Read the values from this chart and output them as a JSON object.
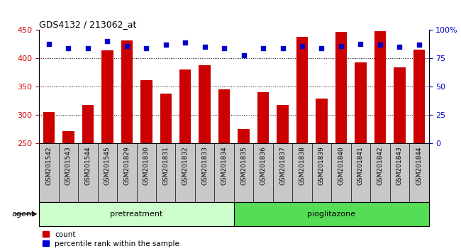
{
  "title": "GDS4132 / 213062_at",
  "categories": [
    "GSM201542",
    "GSM201543",
    "GSM201544",
    "GSM201545",
    "GSM201829",
    "GSM201830",
    "GSM201831",
    "GSM201832",
    "GSM201833",
    "GSM201834",
    "GSM201835",
    "GSM201836",
    "GSM201837",
    "GSM201838",
    "GSM201839",
    "GSM201840",
    "GSM201841",
    "GSM201842",
    "GSM201843",
    "GSM201844"
  ],
  "counts": [
    305,
    271,
    317,
    414,
    432,
    362,
    338,
    380,
    388,
    345,
    275,
    340,
    317,
    438,
    329,
    447,
    393,
    448,
    384,
    416
  ],
  "percentile_ranks": [
    88,
    84,
    84,
    90,
    86,
    84,
    87,
    89,
    85,
    84,
    78,
    84,
    84,
    86,
    84,
    86,
    88,
    87,
    85,
    87
  ],
  "bar_color": "#cc0000",
  "dot_color": "#0000cc",
  "ylim_left": [
    250,
    450
  ],
  "ylim_right": [
    0,
    100
  ],
  "yticks_left": [
    250,
    300,
    350,
    400,
    450
  ],
  "yticks_right": [
    0,
    25,
    50,
    75,
    100
  ],
  "yticklabels_right": [
    "0",
    "25",
    "50",
    "75",
    "100%"
  ],
  "grid_ticks": [
    300,
    350,
    400
  ],
  "plot_bg_color": "#ffffff",
  "tick_area_bg": "#c8c8c8",
  "pretreatment_color": "#ccffcc",
  "pioglitazone_color": "#55dd55",
  "pretreatment_n": 10,
  "pioglitazone_n": 10,
  "legend_count_label": "count",
  "legend_pct_label": "percentile rank within the sample",
  "agent_label": "agent",
  "pretreatment_label": "pretreatment",
  "pioglitazone_label": "pioglitazone"
}
